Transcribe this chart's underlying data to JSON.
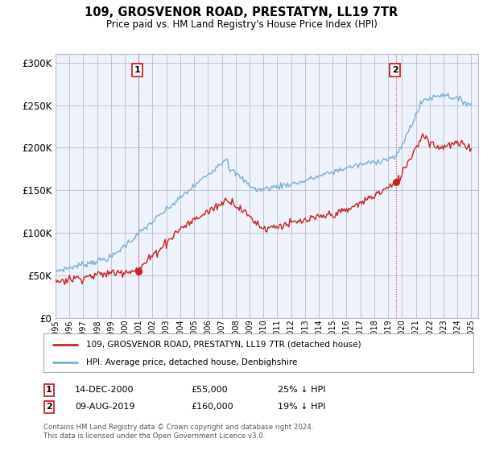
{
  "title": "109, GROSVENOR ROAD, PRESTATYN, LL19 7TR",
  "subtitle": "Price paid vs. HM Land Registry's House Price Index (HPI)",
  "hpi_label": "HPI: Average price, detached house, Denbighshire",
  "price_label": "109, GROSVENOR ROAD, PRESTATYN, LL19 7TR (detached house)",
  "annotation1": {
    "num": "1",
    "date": "14-DEC-2000",
    "price": 55000,
    "note": "25% ↓ HPI",
    "x": 2001.0
  },
  "annotation2": {
    "num": "2",
    "date": "09-AUG-2019",
    "price": 160000,
    "note": "19% ↓ HPI",
    "x": 2019.6
  },
  "hpi_color": "#7ab0d4",
  "price_color": "#cc2222",
  "background_color": "#eef2fa",
  "grid_color": "#bbbbcc",
  "ylim": [
    0,
    310000
  ],
  "yticks": [
    0,
    50000,
    100000,
    150000,
    200000,
    250000,
    300000
  ],
  "xlim_start": 1995,
  "xlim_end": 2025.5,
  "footer1": "Contains HM Land Registry data © Crown copyright and database right 2024.",
  "footer2": "This data is licensed under the Open Government Licence v3.0."
}
